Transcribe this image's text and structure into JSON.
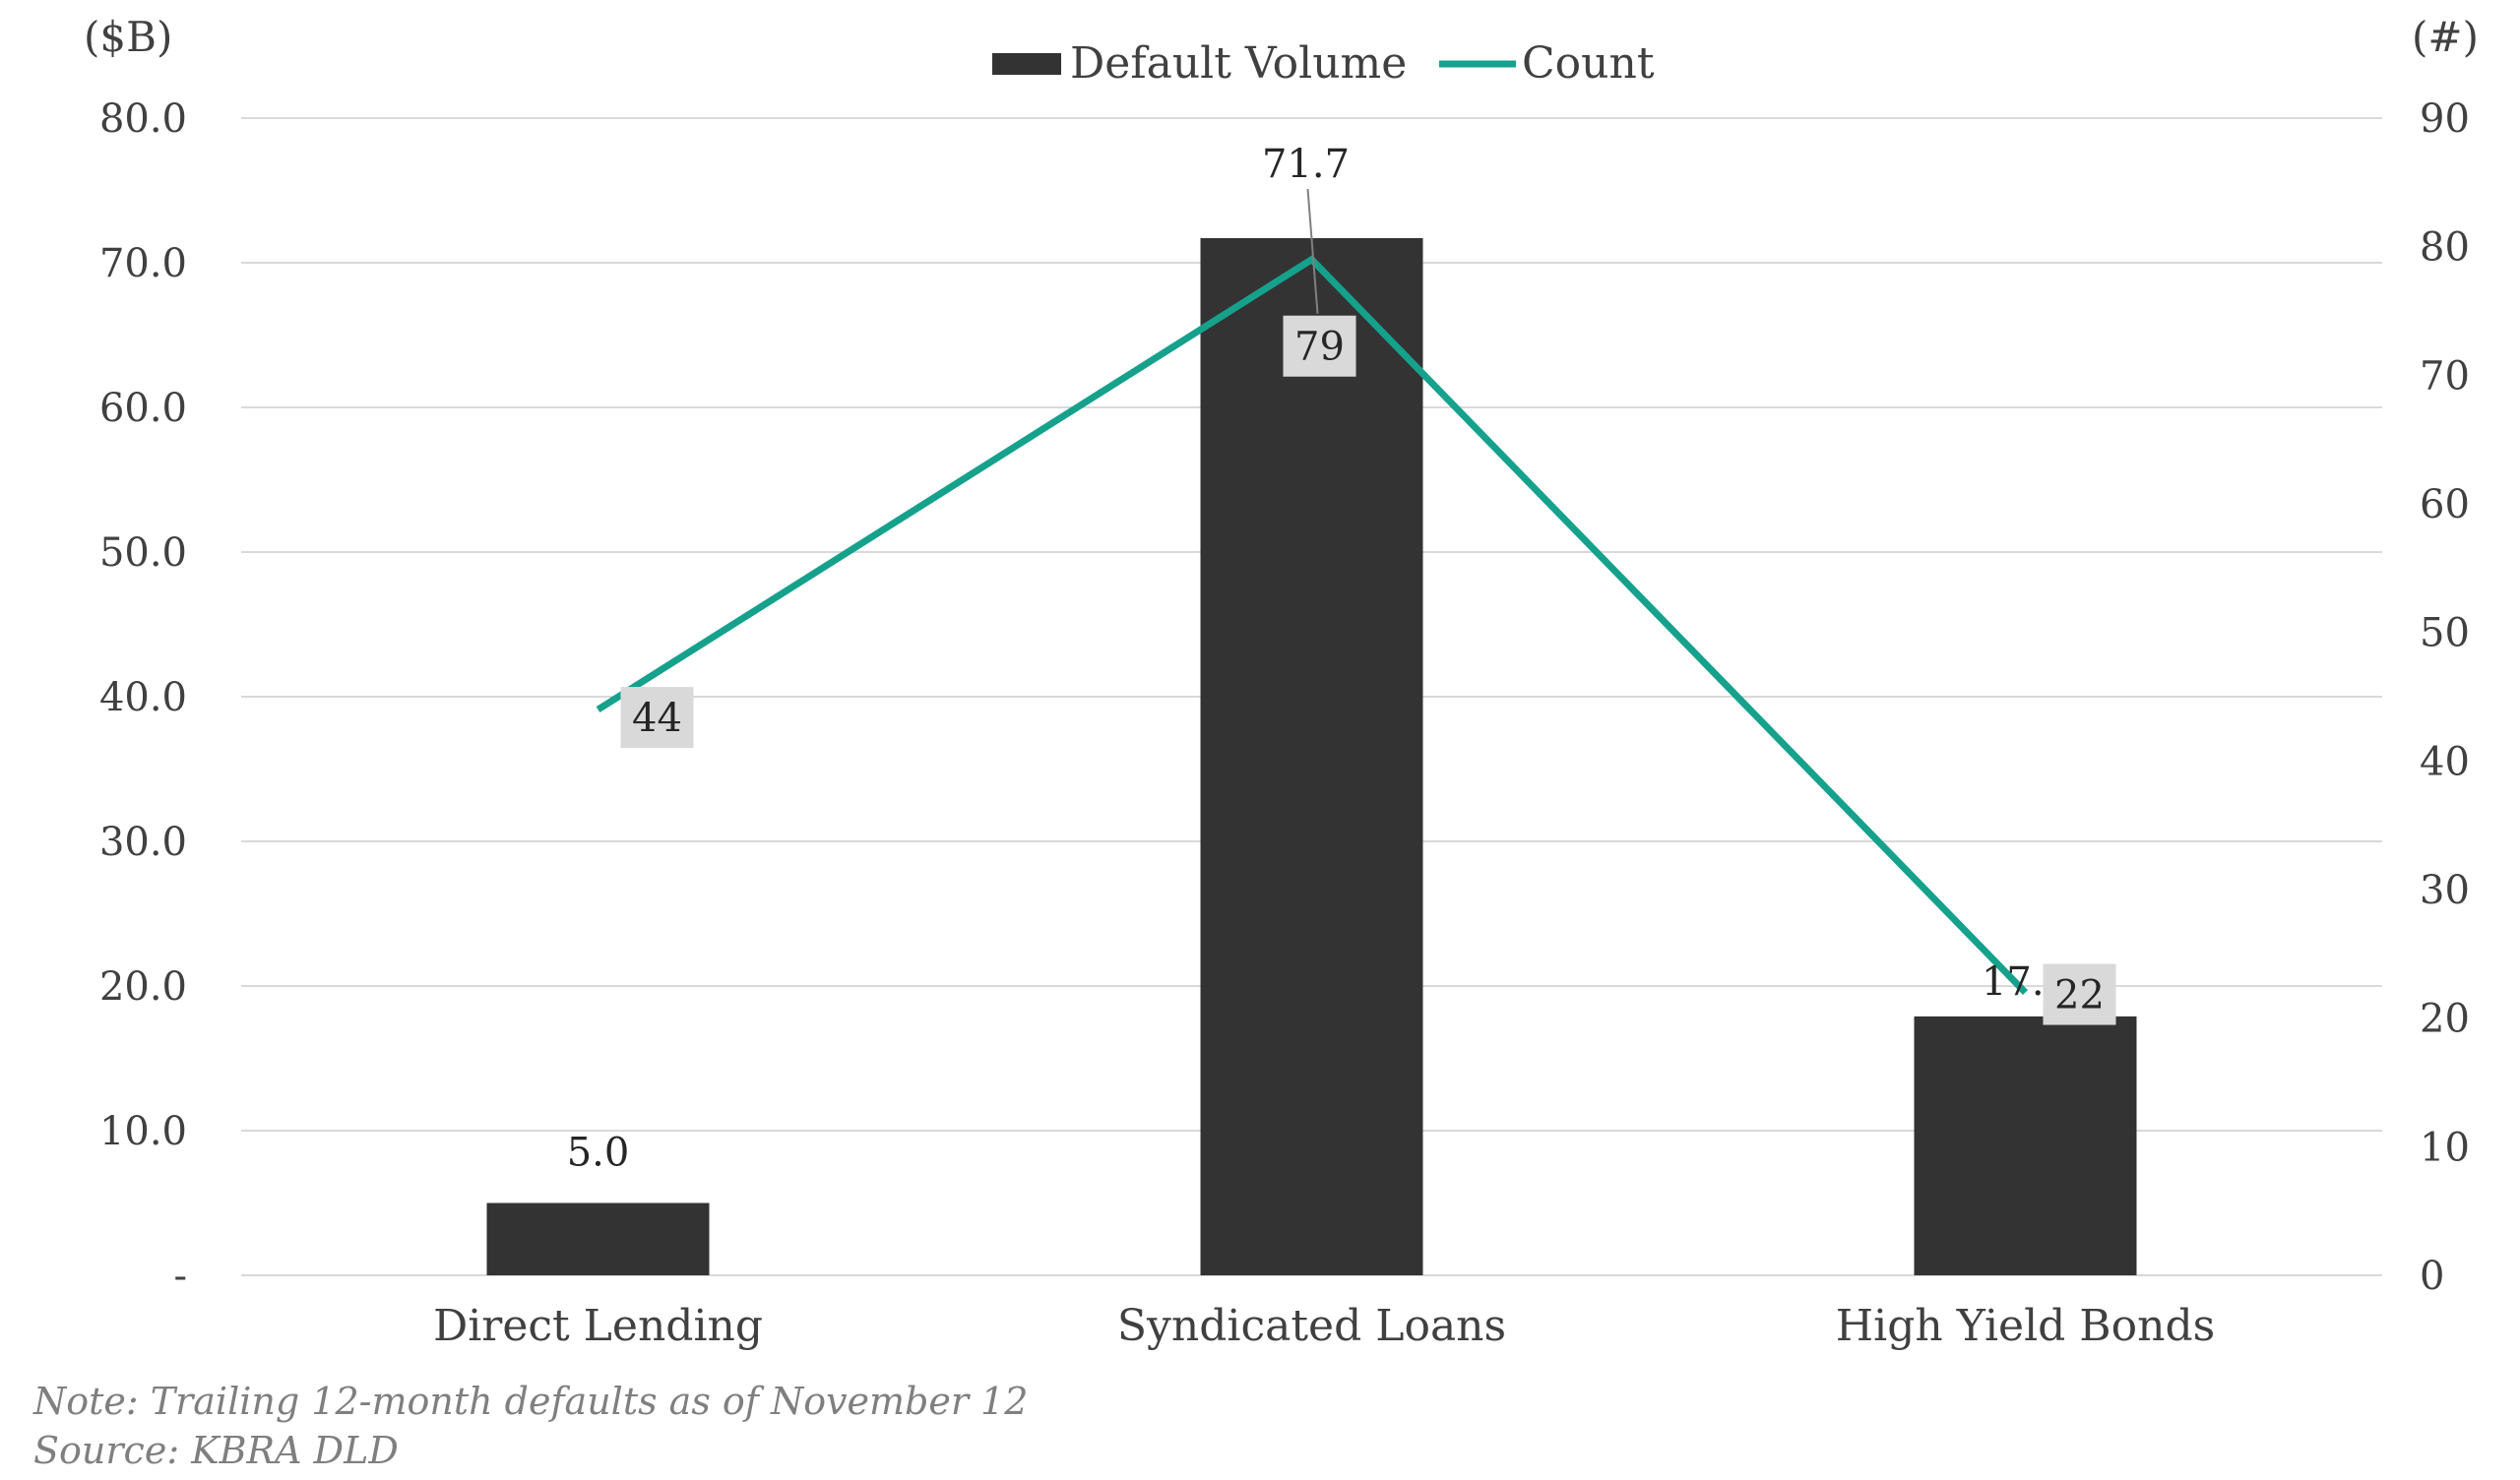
{
  "chart_data": {
    "type": "bar",
    "categories": [
      "Direct Lending",
      "Syndicated Loans",
      "High Yield Bonds"
    ],
    "series": [
      {
        "name": "Default Volume",
        "type": "bar",
        "axis": "left",
        "values": [
          5.0,
          71.7,
          17.9
        ],
        "labels": [
          "5.0",
          "71.7",
          "17.9"
        ],
        "color": "#333333"
      },
      {
        "name": "Count",
        "type": "line",
        "axis": "right",
        "values": [
          44,
          79,
          22
        ],
        "labels": [
          "44",
          "79",
          "22"
        ],
        "color": "#16a18c"
      }
    ],
    "y_left": {
      "unit_label": "($B)",
      "range": [
        0,
        80
      ],
      "ticks": [
        "-",
        "10.0",
        "20.0",
        "30.0",
        "40.0",
        "50.0",
        "60.0",
        "70.0",
        "80.0"
      ]
    },
    "y_right": {
      "unit_label": "(#)",
      "range": [
        0,
        90
      ],
      "ticks": [
        "0",
        "10",
        "20",
        "30",
        "40",
        "50",
        "60",
        "70",
        "80",
        "90"
      ]
    },
    "grid": true,
    "legend_position": "top-center",
    "label_box_color": "#d9d9d9",
    "grid_color": "#d9d9d9"
  },
  "notes": {
    "note": "Note: Trailing 12-month defaults as of November 12",
    "source": "Source: KBRA DLD"
  }
}
